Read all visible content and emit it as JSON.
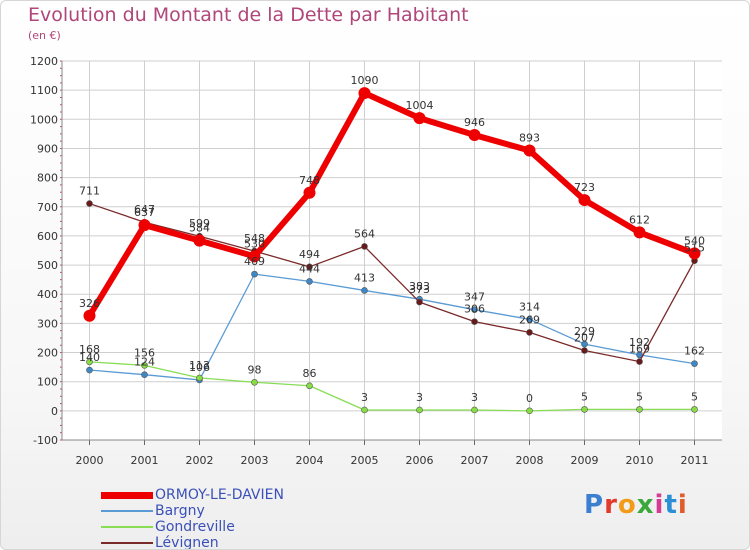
{
  "title": "Evolution du Montant de la Dette par Habitant",
  "subtitle": "(en €)",
  "logo_text": "Proxiti",
  "chart_data": {
    "type": "line",
    "title": "Evolution du Montant de la Dette par Habitant",
    "subtitle": "(en €)",
    "xlabel": "",
    "ylabel": "",
    "x": [
      2000,
      2001,
      2002,
      2003,
      2004,
      2005,
      2006,
      2007,
      2008,
      2009,
      2010,
      2011
    ],
    "ylim": [
      -100,
      1200
    ],
    "yticks": [
      -100,
      0,
      100,
      200,
      300,
      400,
      500,
      600,
      700,
      800,
      900,
      1000,
      1100,
      1200
    ],
    "grid": true,
    "legend_position": "bottom-left",
    "series": [
      {
        "name": "ORMOY-LE-DAVIEN",
        "color": "#ee0000",
        "values": [
          326,
          637,
          584,
          530,
          748,
          1090,
          1004,
          946,
          893,
          723,
          612,
          540
        ]
      },
      {
        "name": "Bargny",
        "color": "#5a9bd5",
        "values": [
          140,
          124,
          106,
          469,
          444,
          413,
          383,
          347,
          314,
          229,
          192,
          162
        ]
      },
      {
        "name": "Gondreville",
        "color": "#88dd55",
        "values": [
          168,
          156,
          113,
          98,
          86,
          3,
          3,
          3,
          0,
          5,
          5,
          5
        ]
      },
      {
        "name": "Lévignen",
        "color": "#7a2a2a",
        "values": [
          711,
          647,
          599,
          548,
          494,
          564,
          373,
          306,
          269,
          207,
          169,
          515
        ]
      }
    ]
  }
}
